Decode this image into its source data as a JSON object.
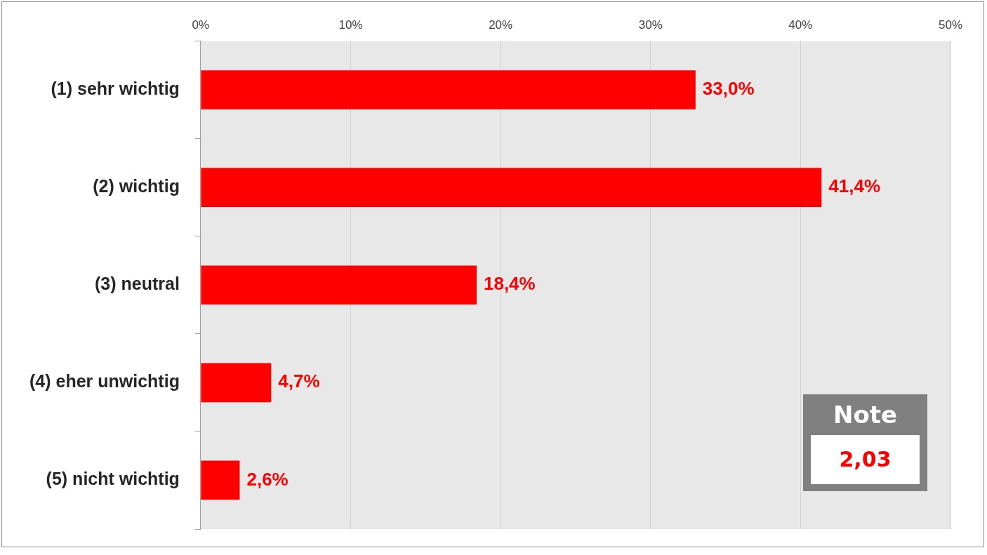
{
  "chart_data": {
    "type": "bar",
    "orientation": "horizontal",
    "categories": [
      "(1) sehr wichtig",
      "(2) wichtig",
      "(3) neutral",
      "(4) eher unwichtig",
      "(5) nicht wichtig"
    ],
    "values": [
      33.0,
      41.4,
      18.4,
      4.7,
      2.6
    ],
    "value_labels": [
      "33,0%",
      "41,4%",
      "18,4%",
      "4,7%",
      "2,6%"
    ],
    "color": "#ff0000",
    "xlim": [
      0,
      50
    ],
    "xticks": [
      {
        "value": 0,
        "label": "0%"
      },
      {
        "value": 10,
        "label": "10%"
      },
      {
        "value": 20,
        "label": "20%"
      },
      {
        "value": 30,
        "label": "30%"
      },
      {
        "value": 40,
        "label": "40%"
      },
      {
        "value": 50,
        "label": "50%"
      }
    ],
    "grid": "x",
    "legend": false,
    "annotations": [
      "Note",
      "2,03"
    ]
  }
}
